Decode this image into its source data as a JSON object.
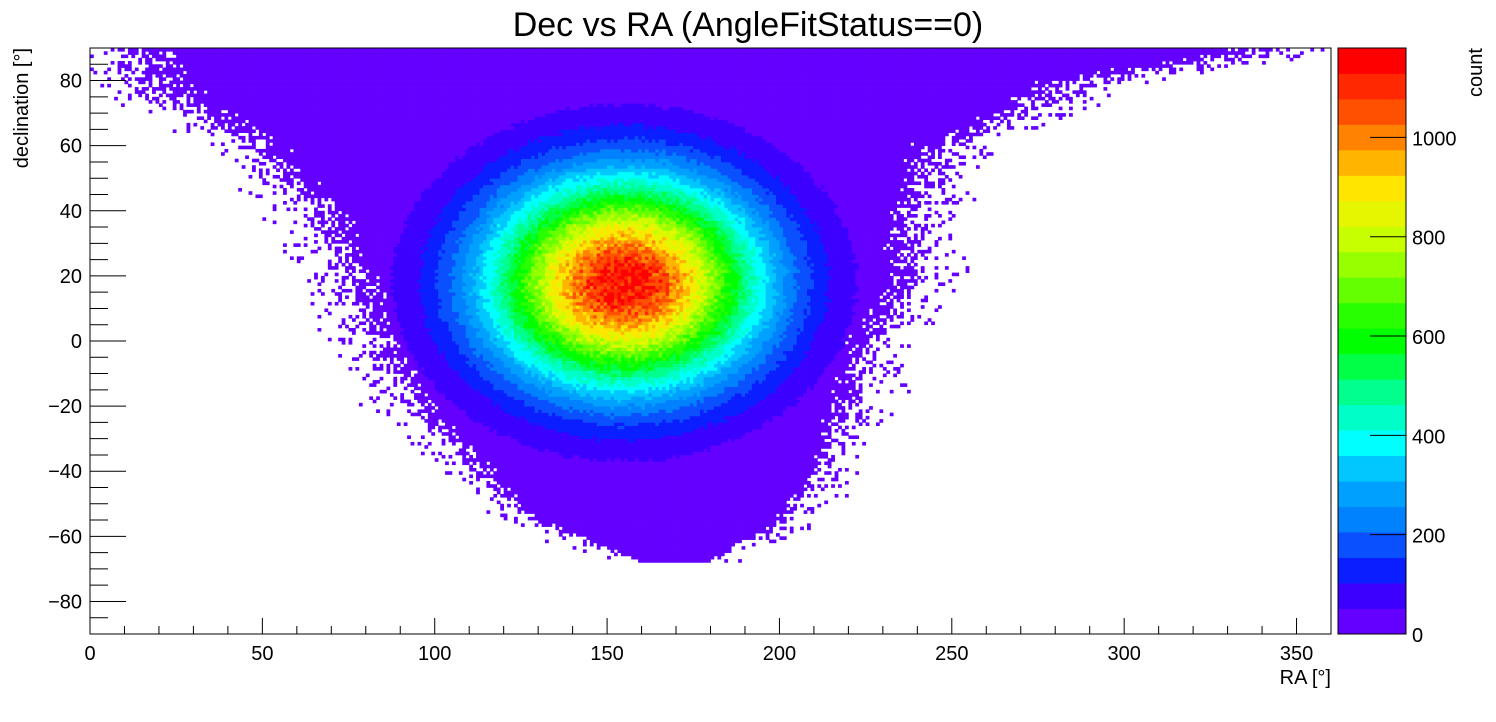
{
  "chart_data": {
    "type": "heatmap",
    "title": "Dec vs RA (AngleFitStatus==0)",
    "xlabel": "RA [°]",
    "ylabel": "declination [°]",
    "zlabel": "count",
    "xlim": [
      0,
      360
    ],
    "ylim": [
      -90,
      90
    ],
    "zlim": [
      0,
      1180
    ],
    "x_ticks": [
      0,
      50,
      100,
      150,
      200,
      250,
      300,
      350
    ],
    "x_tick_labels": [
      "0",
      "50",
      "100",
      "150",
      "200",
      "250",
      "300",
      "350"
    ],
    "y_ticks": [
      -80,
      -60,
      -40,
      -20,
      0,
      20,
      40,
      60,
      80
    ],
    "y_tick_labels": [
      "−80",
      "−60",
      "−40",
      "−20",
      "0",
      "20",
      "40",
      "60",
      "80"
    ],
    "z_ticks": [
      0,
      200,
      400,
      600,
      800,
      1000
    ],
    "z_tick_labels": [
      "0",
      "200",
      "400",
      "600",
      "800",
      "1000"
    ],
    "grid": false,
    "palette": [
      "#6400ff",
      "#3c00ff",
      "#0a1eff",
      "#0a50ff",
      "#0082ff",
      "#00a0ff",
      "#00c8ff",
      "#00ffff",
      "#00ffc8",
      "#00ff8c",
      "#00ff46",
      "#00ff00",
      "#28ff00",
      "#64ff00",
      "#96ff00",
      "#c8ff00",
      "#e6f500",
      "#ffe600",
      "#ffb400",
      "#ff8200",
      "#ff5000",
      "#ff2800",
      "#ff0000"
    ],
    "distribution": {
      "peak": {
        "ra": 155,
        "dec": 18,
        "count": 1150
      },
      "core_width": {
        "ra": 27,
        "dec": 22
      },
      "nonzero_region": {
        "dec_max": 90,
        "dec_min": -68,
        "ra_range_at_dec": [
          {
            "dec": 90,
            "ra": [
              0,
              360
            ]
          },
          {
            "dec": 80,
            "ra": [
              5,
              300
            ]
          },
          {
            "dec": 60,
            "ra": [
              40,
              255
            ]
          },
          {
            "dec": 40,
            "ra": [
              60,
              245
            ]
          },
          {
            "dec": 20,
            "ra": [
              70,
              245
            ]
          },
          {
            "dec": 0,
            "ra": [
              78,
              232
            ]
          },
          {
            "dec": -20,
            "ra": [
              90,
              225
            ]
          },
          {
            "dec": -40,
            "ra": [
              110,
              215
            ]
          },
          {
            "dec": -55,
            "ra": [
              125,
              205
            ]
          },
          {
            "dec": -68,
            "ra": [
              160,
              180
            ]
          }
        ]
      }
    }
  }
}
